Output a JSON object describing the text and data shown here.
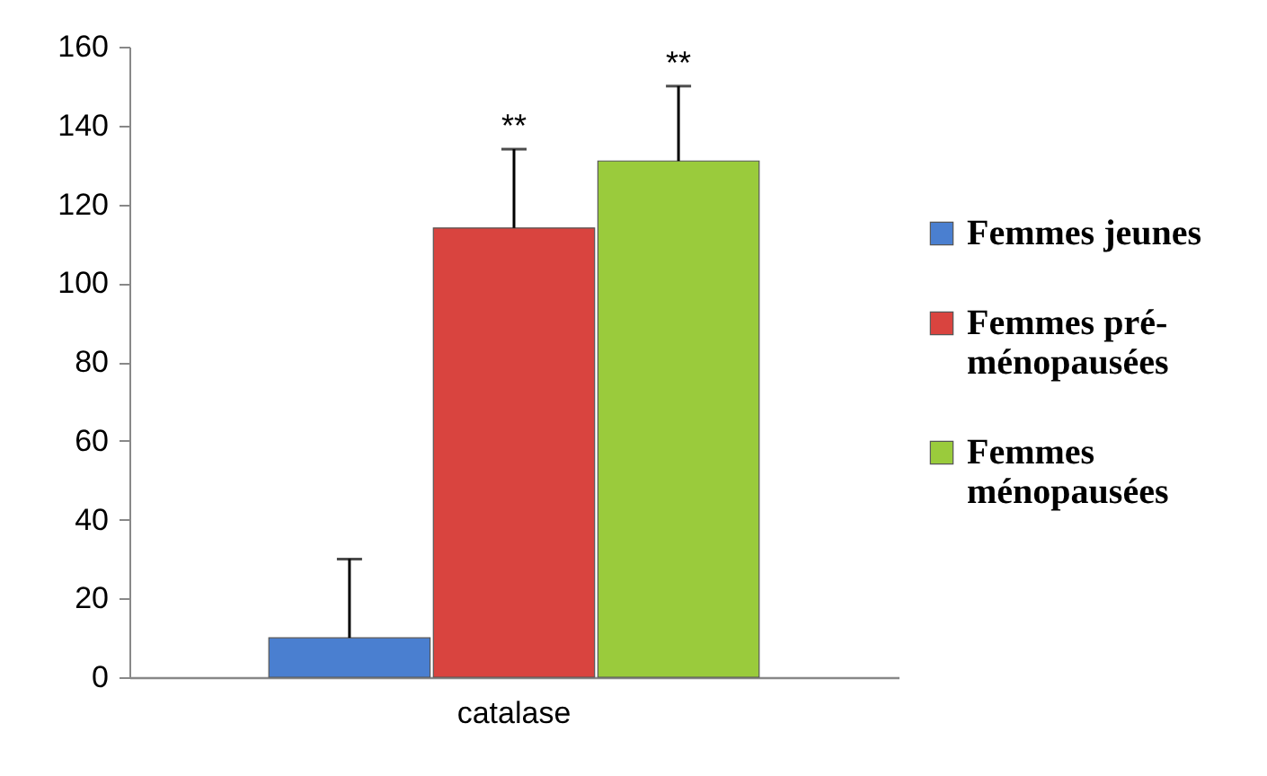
{
  "chart_data": {
    "type": "bar",
    "categories": [
      "catalase"
    ],
    "series": [
      {
        "name": "Femmes jeunes",
        "color": "#4a7fd0",
        "values": [
          10
        ],
        "errors": [
          [
            10,
            30
          ]
        ]
      },
      {
        "name": "Femmes pré-ménopausées",
        "color": "#d9443f",
        "values": [
          114
        ],
        "errors": [
          [
            114,
            134
          ]
        ]
      },
      {
        "name": "Femmes ménopausées",
        "color": "#9acb3c",
        "values": [
          131
        ],
        "errors": [
          [
            131,
            150
          ]
        ]
      }
    ],
    "annotations": [
      "**",
      "**"
    ],
    "ylim": [
      0,
      160
    ],
    "yticks": [
      0,
      20,
      40,
      60,
      80,
      100,
      120,
      140,
      160
    ],
    "grid": false,
    "legend": "right"
  }
}
